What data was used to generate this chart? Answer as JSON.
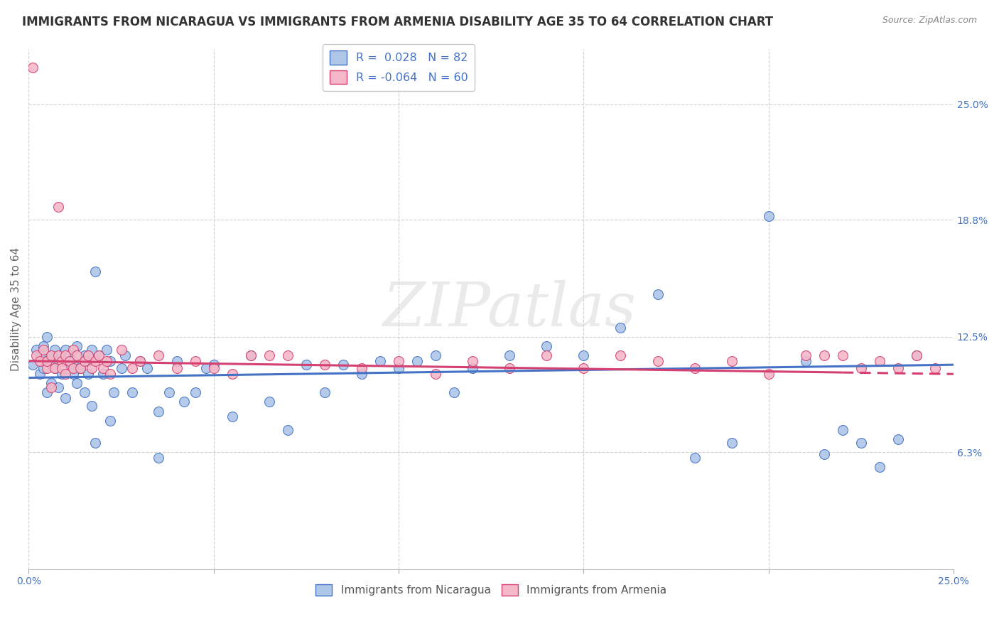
{
  "title": "IMMIGRANTS FROM NICARAGUA VS IMMIGRANTS FROM ARMENIA DISABILITY AGE 35 TO 64 CORRELATION CHART",
  "source": "Source: ZipAtlas.com",
  "ylabel": "Disability Age 35 to 64",
  "xlim": [
    0.0,
    0.25
  ],
  "ylim": [
    0.0,
    0.28
  ],
  "nicaragua_R": 0.028,
  "nicaragua_N": 82,
  "armenia_R": -0.064,
  "armenia_N": 60,
  "nicaragua_color": "#aec6e8",
  "nicaragua_edge_color": "#4472c4",
  "armenia_color": "#f4b8c8",
  "armenia_edge_color": "#d44070",
  "nicaragua_line_color": "#4472c4",
  "armenia_line_color": "#d44070",
  "watermark": "ZIPatlas",
  "background_color": "#ffffff",
  "grid_color": "#d0d0d0",
  "title_fontsize": 12,
  "label_fontsize": 11,
  "tick_fontsize": 10,
  "nicaragua_x": [
    0.001,
    0.002,
    0.003,
    0.003,
    0.004,
    0.004,
    0.005,
    0.005,
    0.005,
    0.006,
    0.006,
    0.007,
    0.007,
    0.008,
    0.008,
    0.009,
    0.009,
    0.01,
    0.01,
    0.011,
    0.011,
    0.012,
    0.012,
    0.013,
    0.013,
    0.014,
    0.015,
    0.015,
    0.016,
    0.016,
    0.017,
    0.017,
    0.018,
    0.019,
    0.02,
    0.021,
    0.022,
    0.023,
    0.025,
    0.026,
    0.028,
    0.03,
    0.032,
    0.035,
    0.038,
    0.04,
    0.042,
    0.045,
    0.048,
    0.05,
    0.055,
    0.06,
    0.065,
    0.07,
    0.075,
    0.08,
    0.085,
    0.09,
    0.095,
    0.1,
    0.105,
    0.11,
    0.115,
    0.12,
    0.13,
    0.14,
    0.15,
    0.16,
    0.17,
    0.18,
    0.19,
    0.2,
    0.21,
    0.215,
    0.22,
    0.225,
    0.23,
    0.235,
    0.24,
    0.018,
    0.022,
    0.035
  ],
  "nicaragua_y": [
    0.11,
    0.118,
    0.105,
    0.115,
    0.108,
    0.12,
    0.112,
    0.095,
    0.125,
    0.1,
    0.115,
    0.108,
    0.118,
    0.112,
    0.098,
    0.115,
    0.105,
    0.118,
    0.092,
    0.11,
    0.115,
    0.105,
    0.112,
    0.1,
    0.12,
    0.108,
    0.115,
    0.095,
    0.112,
    0.105,
    0.118,
    0.088,
    0.16,
    0.115,
    0.105,
    0.118,
    0.112,
    0.095,
    0.108,
    0.115,
    0.095,
    0.112,
    0.108,
    0.085,
    0.095,
    0.112,
    0.09,
    0.095,
    0.108,
    0.11,
    0.082,
    0.115,
    0.09,
    0.075,
    0.11,
    0.095,
    0.11,
    0.105,
    0.112,
    0.108,
    0.112,
    0.115,
    0.095,
    0.108,
    0.115,
    0.12,
    0.115,
    0.13,
    0.148,
    0.06,
    0.068,
    0.19,
    0.112,
    0.062,
    0.075,
    0.068,
    0.055,
    0.07,
    0.115,
    0.068,
    0.08,
    0.06
  ],
  "armenia_x": [
    0.001,
    0.002,
    0.003,
    0.004,
    0.005,
    0.005,
    0.006,
    0.006,
    0.007,
    0.008,
    0.008,
    0.009,
    0.009,
    0.01,
    0.01,
    0.011,
    0.012,
    0.012,
    0.013,
    0.014,
    0.015,
    0.016,
    0.017,
    0.018,
    0.019,
    0.02,
    0.021,
    0.022,
    0.025,
    0.028,
    0.03,
    0.035,
    0.04,
    0.045,
    0.05,
    0.055,
    0.06,
    0.065,
    0.07,
    0.08,
    0.09,
    0.1,
    0.11,
    0.12,
    0.13,
    0.14,
    0.15,
    0.16,
    0.17,
    0.18,
    0.19,
    0.2,
    0.21,
    0.215,
    0.22,
    0.225,
    0.23,
    0.235,
    0.24,
    0.245
  ],
  "armenia_y": [
    0.27,
    0.115,
    0.112,
    0.118,
    0.108,
    0.112,
    0.115,
    0.098,
    0.108,
    0.115,
    0.195,
    0.112,
    0.108,
    0.115,
    0.105,
    0.112,
    0.108,
    0.118,
    0.115,
    0.108,
    0.112,
    0.115,
    0.108,
    0.112,
    0.115,
    0.108,
    0.112,
    0.105,
    0.118,
    0.108,
    0.112,
    0.115,
    0.108,
    0.112,
    0.108,
    0.105,
    0.115,
    0.115,
    0.115,
    0.11,
    0.108,
    0.112,
    0.105,
    0.112,
    0.108,
    0.115,
    0.108,
    0.115,
    0.112,
    0.108,
    0.112,
    0.105,
    0.115,
    0.115,
    0.115,
    0.108,
    0.112,
    0.108,
    0.115,
    0.108
  ]
}
